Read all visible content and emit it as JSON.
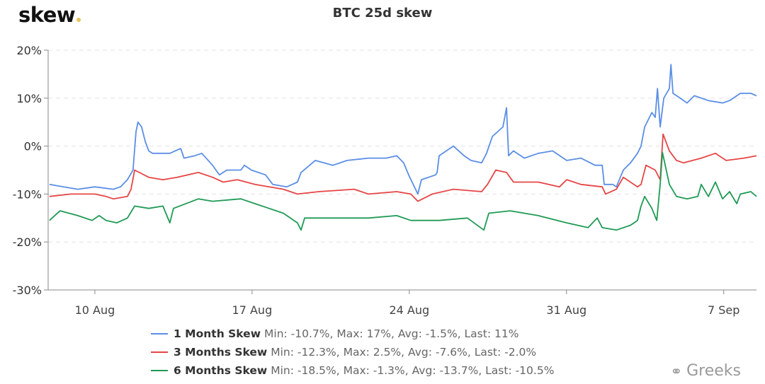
{
  "logo": {
    "text": "skew"
  },
  "watermark": {
    "text": "Greeks",
    "icon": "wechat-icon"
  },
  "chart_data": {
    "type": "line",
    "title": "BTC 25d skew",
    "xlabel": "",
    "ylabel": "",
    "x_unit": "day of Aug (days past 31 continue into Sep)",
    "xlim": [
      7.92,
      39.46
    ],
    "ylim": [
      -30,
      20
    ],
    "grid": true,
    "legend_position": "bottom",
    "yticks": [
      20,
      10,
      0,
      -10,
      -20,
      -30
    ],
    "ytick_labels": [
      "20%",
      "10%",
      "0%",
      "-10%",
      "-20%",
      "-30%"
    ],
    "xticks": [
      10,
      17,
      24,
      31,
      38
    ],
    "xtick_labels": [
      "10 Aug",
      "17 Aug",
      "24 Aug",
      "31 Aug",
      "7 Sep"
    ],
    "series": [
      {
        "name": "1 Month Skew",
        "stats": "Min: -10.7%, Max: 17%, Avg: -1.5%, Last: 11%",
        "color": "#5b8ee6",
        "x": [
          7.98,
          8.61,
          9.24,
          10,
          10.82,
          11.14,
          11.45,
          11.7,
          11.83,
          11.92,
          12.08,
          12.24,
          12.4,
          12.56,
          13.34,
          13.82,
          13.97,
          14.45,
          14.76,
          15.24,
          15.39,
          15.55,
          15.87,
          16.5,
          16.66,
          16.97,
          17.6,
          17.92,
          18.55,
          19.02,
          19.18,
          19.81,
          20.6,
          21.23,
          22.18,
          22.97,
          23.44,
          23.75,
          23.97,
          24.38,
          24.54,
          25.17,
          25.24,
          25.33,
          25.96,
          26.44,
          26.75,
          27.22,
          27.44,
          27.7,
          28.17,
          28.33,
          28.42,
          28.64,
          29.12,
          29.75,
          30.38,
          31.01,
          31.64,
          32.27,
          32.59,
          32.68,
          33.06,
          33.22,
          33.53,
          33.85,
          34.16,
          34.32,
          34.48,
          34.8,
          34.95,
          35.05,
          35.17,
          35.33,
          35.58,
          35.65,
          35.74,
          36.06,
          36.37,
          36.69,
          37.32,
          37.95,
          38.26,
          38.74,
          39.21,
          39.46
        ],
        "y": [
          -8,
          -8.5,
          -9,
          -8.5,
          -9,
          -8.5,
          -7,
          -5,
          3,
          5,
          4,
          1,
          -1,
          -1.5,
          -1.5,
          -0.5,
          -2.5,
          -2,
          -1.5,
          -4,
          -5,
          -6,
          -5,
          -5,
          -4,
          -5,
          -6,
          -8,
          -8.5,
          -7.5,
          -5.5,
          -3,
          -4,
          -3,
          -2.5,
          -2.5,
          -2,
          -3.5,
          -6,
          -10,
          -7,
          -6,
          -5.5,
          -2,
          0,
          -2,
          -3,
          -3.5,
          -1.5,
          2,
          4,
          8,
          -2,
          -1,
          -2.5,
          -1.5,
          -1,
          -3,
          -2.5,
          -4,
          -4,
          -8,
          -8,
          -8.5,
          -5,
          -3.5,
          -1.5,
          0,
          4,
          7,
          6,
          12,
          4,
          10,
          12,
          17,
          11,
          10,
          9,
          10.5,
          9.5,
          9,
          9.5,
          11,
          11,
          10.5
        ]
      },
      {
        "name": "3 Months Skew",
        "stats": "Min: -12.3%, Max: 2.5%, Avg: -7.6%, Last: -2.0%",
        "color": "#e64545",
        "x": [
          7.98,
          8.93,
          10,
          10.5,
          10.82,
          11.45,
          11.61,
          11.77,
          12.4,
          13.03,
          13.66,
          14.61,
          15.24,
          15.71,
          16.34,
          17.13,
          17.76,
          18.39,
          19.02,
          19.97,
          21.55,
          22.18,
          23.44,
          24.07,
          24.38,
          25.02,
          25.96,
          27.22,
          27.48,
          27.85,
          28.33,
          28.64,
          29.75,
          30.69,
          31.01,
          31.64,
          32.59,
          32.74,
          33.22,
          33.53,
          34.16,
          34.32,
          34.54,
          34.95,
          35.17,
          35.3,
          35.58,
          35.9,
          36.21,
          37.0,
          37.63,
          38.11,
          38.9,
          39.46
        ],
        "y": [
          -10.5,
          -10,
          -10,
          -10.5,
          -11,
          -10.5,
          -9,
          -5,
          -6.5,
          -7,
          -6.5,
          -5.5,
          -6.5,
          -7.5,
          -7,
          -8,
          -8.5,
          -9,
          -10,
          -9.5,
          -9,
          -10,
          -9.5,
          -10,
          -11.5,
          -10,
          -9,
          -9.5,
          -8,
          -5,
          -5.5,
          -7.5,
          -7.5,
          -8.5,
          -7,
          -8,
          -8.5,
          -10,
          -9,
          -6.5,
          -8.5,
          -8,
          -4,
          -5,
          -7,
          2.5,
          -1,
          -3,
          -3.5,
          -2.5,
          -1.5,
          -3,
          -2.5,
          -2
        ]
      },
      {
        "name": "6 Months Skew",
        "stats": "Min: -18.5%, Max: -1.3%, Avg: -13.7%, Last: -10.5%",
        "color": "#1f9a55",
        "x": [
          7.98,
          8.45,
          9.24,
          9.87,
          10.19,
          10.5,
          10.98,
          11.45,
          11.77,
          12.4,
          13.03,
          13.34,
          13.5,
          14.61,
          15.24,
          16.5,
          17.13,
          17.76,
          18.39,
          19.02,
          19.18,
          19.34,
          20.6,
          22.18,
          23.44,
          24.07,
          25.33,
          26.59,
          27.32,
          27.54,
          28.49,
          29.75,
          31.01,
          31.96,
          32.37,
          32.59,
          33.22,
          33.85,
          34.16,
          34.32,
          34.48,
          34.8,
          35.02,
          35.17,
          35.27,
          35.58,
          35.9,
          36.37,
          36.85,
          37.0,
          37.32,
          37.63,
          37.95,
          38.26,
          38.58,
          38.74,
          39.21,
          39.46
        ],
        "y": [
          -15.5,
          -13.5,
          -14.5,
          -15.5,
          -14.5,
          -15.5,
          -16,
          -15,
          -12.5,
          -13,
          -12.5,
          -16,
          -13,
          -11,
          -11.5,
          -11,
          -12,
          -13,
          -14,
          -16,
          -17.5,
          -15,
          -15,
          -15,
          -14.5,
          -15.5,
          -15.5,
          -15,
          -17.5,
          -14,
          -13.5,
          -14.5,
          -16,
          -17,
          -15,
          -17,
          -17.5,
          -16.5,
          -15.5,
          -12.5,
          -10.5,
          -13,
          -15.5,
          -8,
          -1.3,
          -8,
          -10.5,
          -11,
          -10.5,
          -8,
          -10.5,
          -7.5,
          -11,
          -9.5,
          -12,
          -10,
          -9.5,
          -10.5
        ]
      }
    ]
  }
}
